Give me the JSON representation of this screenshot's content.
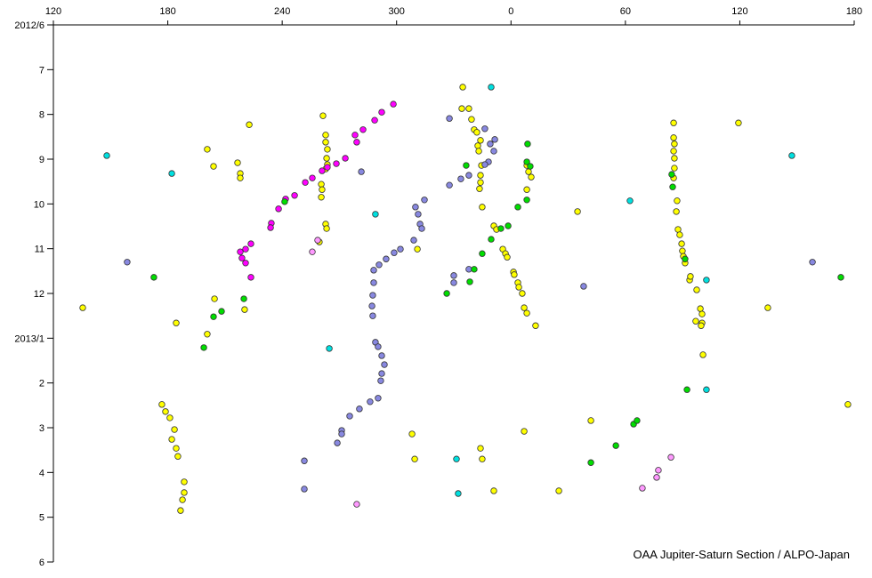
{
  "chart_data": {
    "type": "scatter",
    "annotation": "OAA Jupiter-Saturn Section / ALPO-Japan",
    "xlim": [
      120,
      540
    ],
    "ylim": [
      0,
      12
    ],
    "y_inverted": true,
    "x_axis_position": "top",
    "grid": false,
    "xticks": [
      120,
      180,
      240,
      300,
      {
        "value": 360,
        "label": "0"
      },
      {
        "value": 420,
        "label": "60"
      },
      {
        "value": 480,
        "label": "120"
      },
      {
        "value": 540,
        "label": "180"
      }
    ],
    "yticks": [
      {
        "value": 0,
        "label": "2012/6"
      },
      {
        "value": 1,
        "label": "7"
      },
      {
        "value": 2,
        "label": "8"
      },
      {
        "value": 3,
        "label": "9"
      },
      {
        "value": 4,
        "label": "10"
      },
      {
        "value": 5,
        "label": "11"
      },
      {
        "value": 6,
        "label": "12"
      },
      {
        "value": 7,
        "label": "2013/1"
      },
      {
        "value": 8,
        "label": "2"
      },
      {
        "value": 9,
        "label": "3"
      },
      {
        "value": 10,
        "label": "4"
      },
      {
        "value": 11,
        "label": "5"
      },
      {
        "value": 12,
        "label": "6"
      }
    ],
    "series": [
      {
        "color": "#ffff00",
        "x": [
          222.7,
          200.7,
          204.0,
          216.6,
          218.0,
          218.0,
          261.4,
          262.8,
          262.8,
          263.7,
          263.3,
          263.7,
          262.8,
          260.5,
          260.9,
          260.5,
          262.8,
          263.3,
          259.5,
          334.7,
          334.2,
          337.9,
          339.3,
          340.7,
          342.1,
          344.0,
          342.6,
          343.1,
          344.5,
          344.0,
          344.0,
          343.5,
          344.9,
          351.0,
          352.4,
          355.7,
          357.1,
          358.0,
          361.3,
          361.7,
          363.6,
          364.1,
          365.9,
          366.9,
          368.3,
          372.9,
          368.3,
          369.2,
          370.6,
          368.3,
          445.3,
          445.3,
          445.7,
          445.3,
          445.7,
          445.7,
          445.3,
          447.1,
          446.7,
          447.6,
          448.5,
          449.5,
          449.9,
          450.4,
          451.3,
          453.7,
          454.1,
          457.4,
          459.3,
          460.2,
          460.2,
          459.7,
          460.7,
          479.3,
          394.9,
          184.4,
          200.7,
          204.5,
          220.3,
          310.9,
          135.4,
          494.7,
          536.7,
          176.9,
          178.8,
          181.1,
          183.5,
          182.1,
          184.4,
          185.3,
          188.6,
          188.6,
          187.7,
          186.7,
          308.1,
          309.5,
          344.0,
          344.9,
          351.0,
          366.9,
          385.1,
          401.9,
          456.9
        ],
        "y": [
          2.23,
          2.78,
          3.16,
          3.08,
          3.32,
          3.42,
          2.03,
          2.46,
          2.62,
          2.78,
          2.98,
          3.12,
          3.22,
          3.56,
          3.68,
          3.85,
          4.45,
          4.55,
          4.85,
          1.39,
          1.87,
          1.87,
          2.11,
          2.34,
          2.4,
          2.58,
          2.7,
          2.82,
          3.14,
          3.36,
          3.52,
          3.66,
          4.07,
          4.49,
          4.57,
          5.01,
          5.11,
          5.19,
          5.52,
          5.58,
          5.76,
          5.86,
          6.0,
          6.32,
          6.44,
          6.72,
          3.14,
          3.28,
          3.4,
          3.68,
          2.19,
          2.52,
          2.66,
          2.82,
          2.98,
          3.2,
          3.42,
          3.93,
          4.17,
          4.57,
          4.69,
          4.89,
          5.05,
          5.17,
          5.32,
          5.7,
          5.62,
          5.92,
          6.34,
          6.46,
          6.66,
          6.72,
          7.37,
          2.19,
          4.17,
          6.66,
          6.91,
          6.12,
          6.36,
          5.01,
          6.32,
          6.32,
          8.48,
          8.48,
          8.64,
          8.78,
          9.04,
          9.26,
          9.46,
          9.64,
          10.21,
          10.45,
          10.61,
          10.85,
          9.14,
          9.7,
          9.46,
          9.7,
          10.41,
          9.08,
          10.41,
          8.84,
          6.62
        ]
      },
      {
        "color": "#8888e0",
        "x": [
          158.7,
          281.5,
          327.7,
          346.3,
          349.1,
          351.5,
          351.0,
          348.2,
          346.3,
          337.9,
          333.7,
          327.7,
          314.6,
          309.9,
          311.3,
          312.3,
          313.2,
          309.0,
          302.0,
          298.7,
          294.5,
          290.8,
          288.0,
          288.0,
          287.5,
          287.1,
          287.5,
          288.9,
          290.3,
          292.2,
          293.6,
          292.2,
          291.7,
          290.3,
          286.1,
          280.5,
          275.4,
          271.2,
          271.2,
          268.9,
          330.0,
          330.0,
          337.9,
          398.1,
          518.1,
          251.6,
          251.6
        ],
        "y": [
          5.3,
          3.28,
          2.09,
          2.32,
          2.66,
          2.56,
          2.82,
          3.06,
          3.12,
          3.36,
          3.44,
          3.58,
          3.91,
          4.07,
          4.23,
          4.45,
          4.55,
          4.81,
          5.01,
          5.09,
          5.23,
          5.36,
          5.48,
          5.76,
          6.04,
          6.28,
          6.5,
          7.09,
          7.19,
          7.39,
          7.59,
          7.79,
          7.95,
          8.34,
          8.42,
          8.58,
          8.74,
          9.06,
          9.14,
          9.34,
          5.6,
          5.76,
          5.46,
          5.84,
          5.3,
          9.74,
          10.37
        ]
      },
      {
        "color": "#ff00ff",
        "x": [
          298.3,
          292.2,
          288.5,
          282.4,
          278.2,
          279.1,
          273.1,
          268.4,
          263.7,
          260.9,
          255.8,
          252.1,
          246.5,
          241.8,
          238.1,
          234.3,
          233.9,
          223.6,
          220.8,
          218.0,
          218.9,
          220.8,
          223.6
        ],
        "y": [
          1.77,
          1.95,
          2.13,
          2.34,
          2.46,
          2.62,
          2.98,
          3.1,
          3.18,
          3.26,
          3.42,
          3.52,
          3.81,
          3.89,
          4.11,
          4.43,
          4.53,
          4.89,
          5.01,
          5.07,
          5.21,
          5.32,
          5.64
        ]
      },
      {
        "color": "#ff99ff",
        "x": [
          258.6,
          255.8,
          437.3,
          436.4,
          443.9,
          428.9,
          279.1
        ],
        "y": [
          4.81,
          5.07,
          9.95,
          10.11,
          9.66,
          10.35,
          10.71
        ]
      },
      {
        "color": "#00e0e0",
        "x": [
          148.0,
          182.1,
          288.9,
          349.6,
          422.4,
          507.3,
          462.5,
          264.7,
          462.5,
          331.4,
          332.3
        ],
        "y": [
          2.92,
          3.32,
          4.23,
          1.39,
          3.93,
          2.92,
          5.7,
          7.23,
          8.15,
          9.7,
          10.47
        ]
      },
      {
        "color": "#00dd00",
        "x": [
          368.7,
          368.3,
          370.1,
          368.3,
          336.5,
          363.6,
          358.5,
          354.7,
          349.6,
          344.9,
          340.7,
          338.4,
          326.3,
          241.3,
          219.9,
          208.2,
          204.0,
          198.9,
          172.7,
          533.0,
          452.3,
          401.9,
          415.0,
          424.3,
          426.1,
          444.8,
          444.3,
          451.3
        ],
        "y": [
          2.66,
          3.06,
          3.16,
          3.91,
          3.14,
          4.07,
          4.49,
          4.55,
          4.79,
          5.11,
          5.46,
          5.74,
          6.0,
          3.95,
          6.12,
          6.4,
          6.52,
          7.21,
          5.64,
          5.64,
          8.15,
          9.78,
          9.4,
          8.92,
          8.84,
          3.62,
          3.34,
          5.23
        ]
      }
    ]
  }
}
